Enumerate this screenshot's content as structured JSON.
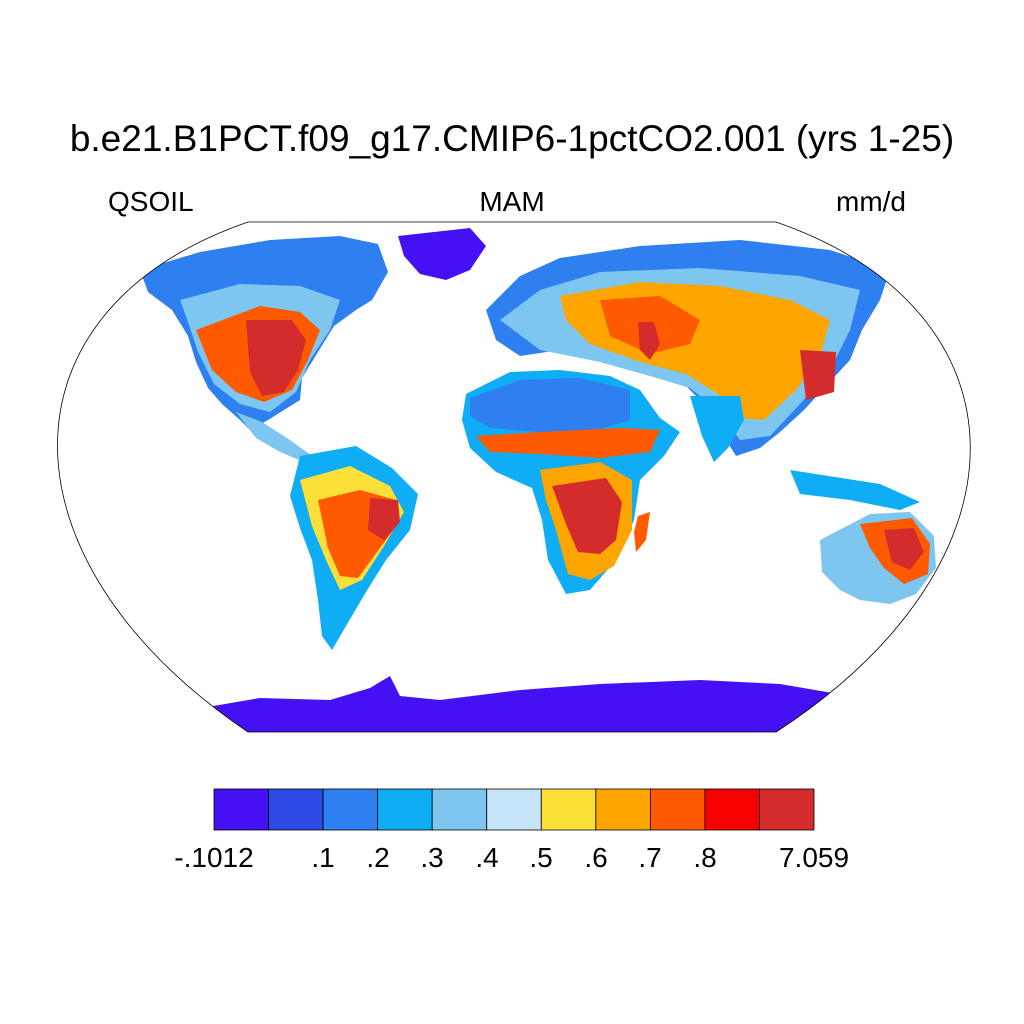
{
  "title": "b.e21.B1PCT.f09_g17.CMIP6-1pctCO2.001 (yrs 1-25)",
  "left_string": "QSOIL",
  "center_string": "MAM",
  "right_string": "mm/d",
  "colorbar": {
    "colors": [
      "#4610f5",
      "#2d49e6",
      "#2e7ff0",
      "#0eadf5",
      "#7dc6f0",
      "#c6e4f8",
      "#fde037",
      "#ffa500",
      "#ff5a00",
      "#f80000",
      "#d42c2c"
    ],
    "labels": [
      "-.1012",
      ".1",
      ".2",
      ".3",
      ".4",
      ".5",
      ".6",
      ".7",
      ".8",
      "7.059"
    ]
  },
  "map": {
    "projection": "Robinson",
    "land_colors": {
      "antarctica": "#4610f5",
      "greenland": "#4610f5",
      "arctic": "#2d49e6",
      "sahara": "#2e7ff0",
      "subtropics": "#0eadf5",
      "temperate": "#7dc6f0",
      "hot_spots": "#d42c2c"
    }
  }
}
